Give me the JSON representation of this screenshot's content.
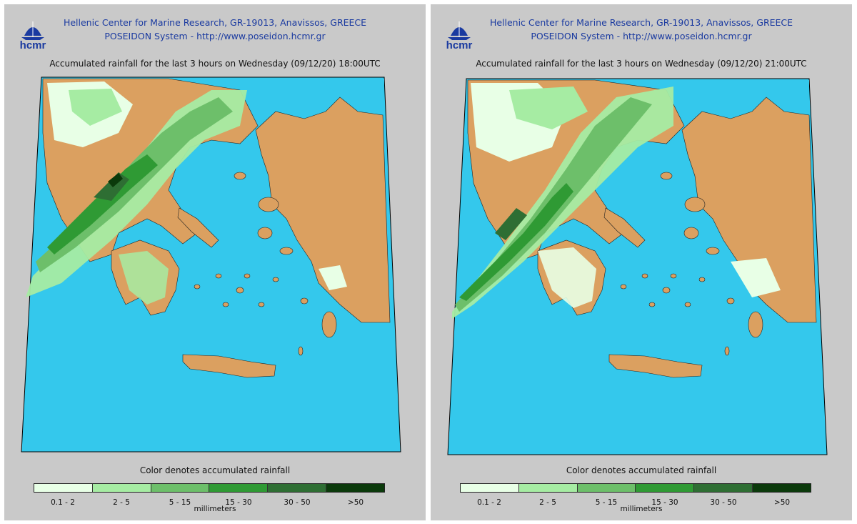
{
  "header": {
    "logo_text": "hcmr",
    "line1": "Hellenic Center for Marine Research, GR-19013, Anavissos, GREECE",
    "line2": "POSEIDON System - http://www.poseidon.hcmr.gr"
  },
  "panels": [
    {
      "title": "Accumulated rainfall for the last 3 hours on Wednesday (09/12/20) 18:00UTC"
    },
    {
      "title": "Accumulated rainfall for the last 3 hours on Wednesday (09/12/20) 21:00UTC"
    }
  ],
  "legend": {
    "title": "Color denotes accumulated rainfall",
    "unit": "millimeters",
    "classes": [
      {
        "label": "0.1 - 2",
        "color": "#e8ffe6"
      },
      {
        "label": "2 - 5",
        "color": "#a6eca3"
      },
      {
        "label": "5 - 15",
        "color": "#6dbf6a"
      },
      {
        "label": "15 - 30",
        "color": "#2f9a34"
      },
      {
        "label": "30 - 50",
        "color": "#2e6e33"
      },
      {
        "label": ">50",
        "color": "#0b3a0b"
      }
    ]
  },
  "colors": {
    "sea": "#34c8ec",
    "land": "#dba060",
    "background": "#c9c9c9",
    "header_text": "#1a3aa0"
  }
}
